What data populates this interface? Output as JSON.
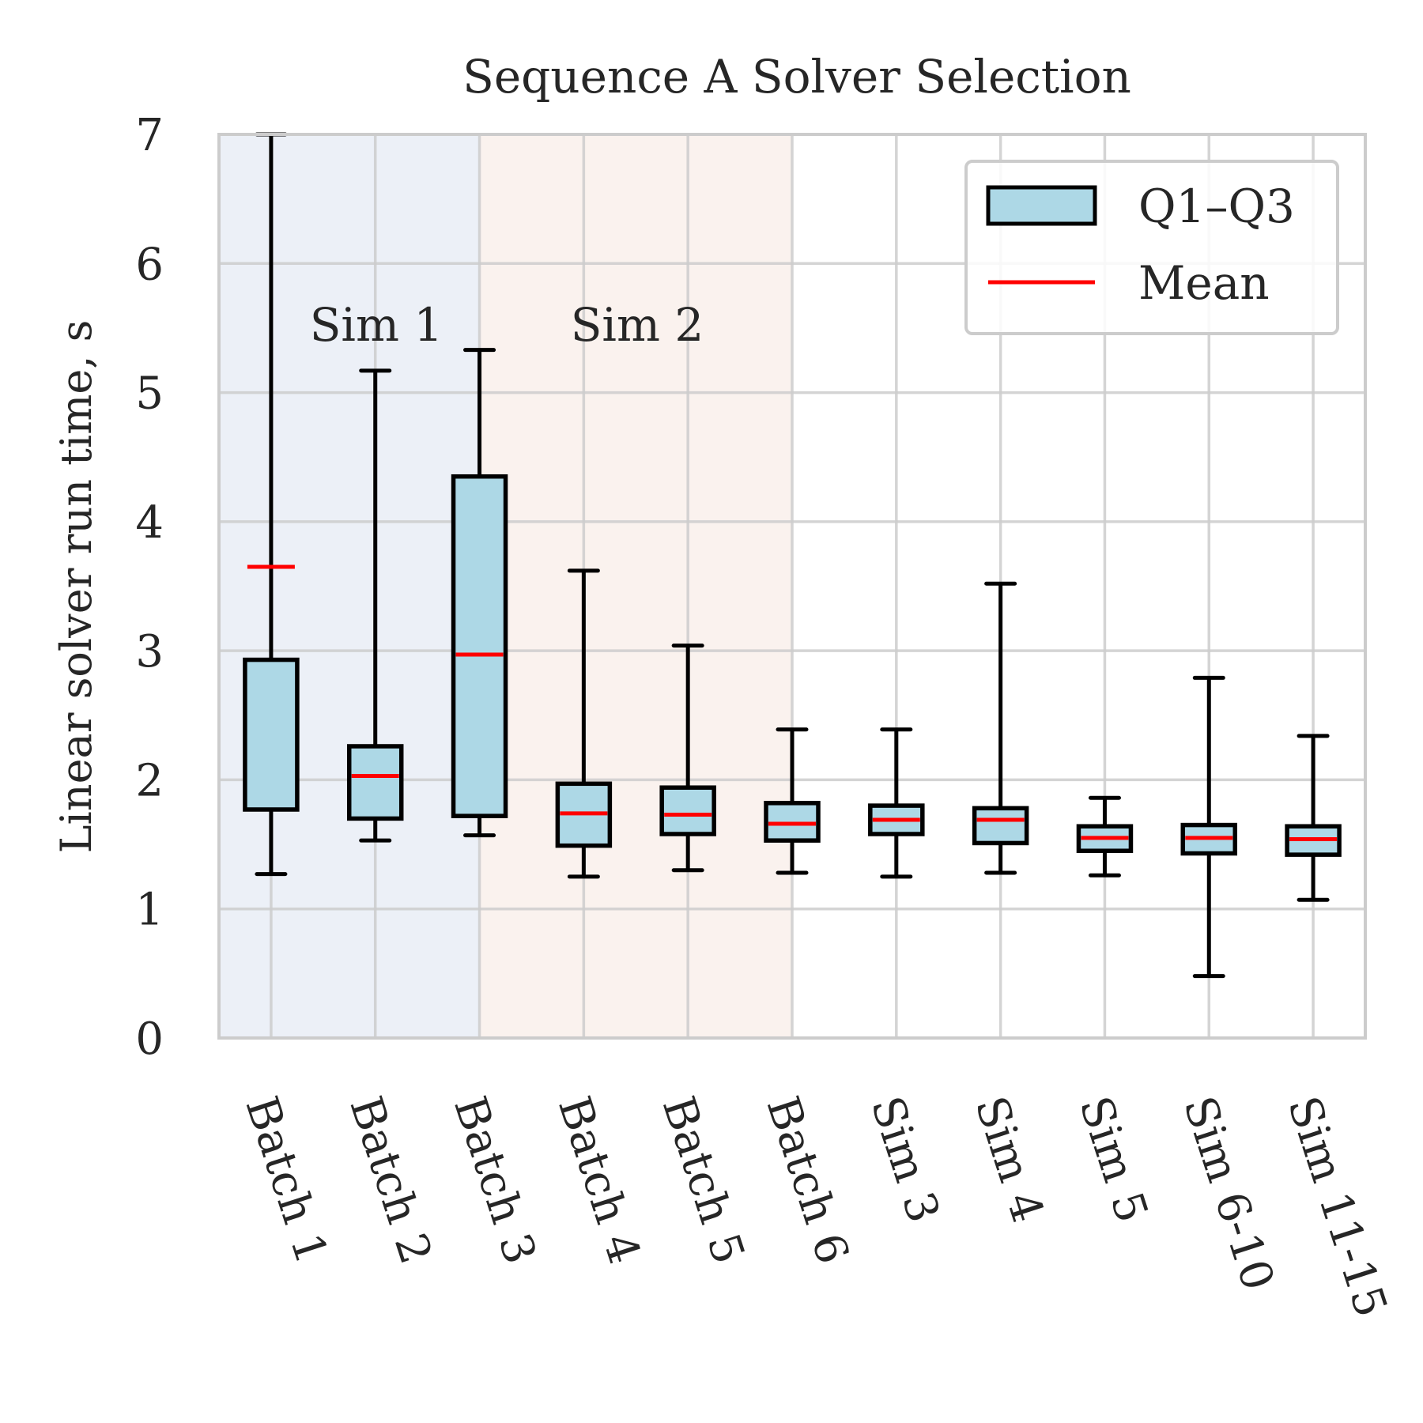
{
  "chart_data": {
    "type": "box",
    "title": "Sequence A Solver Selection",
    "xlabel": "",
    "ylabel": "Linear solver run time, s",
    "ylim": [
      0,
      7
    ],
    "yticks": [
      0,
      1,
      2,
      3,
      4,
      5,
      6,
      7
    ],
    "grid": true,
    "categories": [
      "Batch 1",
      "Batch 2",
      "Batch 3",
      "Batch 4",
      "Batch 5",
      "Batch 6",
      "Sim 3",
      "Sim 4",
      "Sim 5",
      "Sim 6-10",
      "Sim 11-15"
    ],
    "boxes": [
      {
        "whisker_low": 1.27,
        "q1": 1.77,
        "q3": 2.93,
        "whisker_high": 7.0,
        "mean": 3.65
      },
      {
        "whisker_low": 1.53,
        "q1": 1.7,
        "q3": 2.26,
        "whisker_high": 5.17,
        "mean": 2.03
      },
      {
        "whisker_low": 1.57,
        "q1": 1.72,
        "q3": 4.35,
        "whisker_high": 5.33,
        "mean": 2.97
      },
      {
        "whisker_low": 1.25,
        "q1": 1.49,
        "q3": 1.97,
        "whisker_high": 3.62,
        "mean": 1.74
      },
      {
        "whisker_low": 1.3,
        "q1": 1.58,
        "q3": 1.94,
        "whisker_high": 3.04,
        "mean": 1.73
      },
      {
        "whisker_low": 1.28,
        "q1": 1.53,
        "q3": 1.82,
        "whisker_high": 2.39,
        "mean": 1.66
      },
      {
        "whisker_low": 1.25,
        "q1": 1.58,
        "q3": 1.8,
        "whisker_high": 2.39,
        "mean": 1.69
      },
      {
        "whisker_low": 1.28,
        "q1": 1.51,
        "q3": 1.78,
        "whisker_high": 3.52,
        "mean": 1.69
      },
      {
        "whisker_low": 1.26,
        "q1": 1.45,
        "q3": 1.64,
        "whisker_high": 1.86,
        "mean": 1.55
      },
      {
        "whisker_low": 0.48,
        "q1": 1.43,
        "q3": 1.65,
        "whisker_high": 2.79,
        "mean": 1.55
      },
      {
        "whisker_low": 1.07,
        "q1": 1.42,
        "q3": 1.64,
        "whisker_high": 2.34,
        "mean": 1.54
      }
    ],
    "regions": [
      {
        "label": "Sim 1",
        "from_index": -0.5,
        "to_index": 2.0,
        "color": "#ecf0f7"
      },
      {
        "label": "Sim 2",
        "from_index": 2.0,
        "to_index": 5.0,
        "color": "#faf2ee"
      }
    ],
    "legend": {
      "position": "top-right",
      "entries": [
        {
          "label": "Q1–Q3",
          "kind": "box"
        },
        {
          "label": "Mean",
          "kind": "line"
        }
      ]
    },
    "colors": {
      "box_fill": "#add8e6",
      "box_edge": "#000000",
      "mean": "#ff0000",
      "grid": "#cccccc",
      "frame": "#cccccc"
    }
  }
}
